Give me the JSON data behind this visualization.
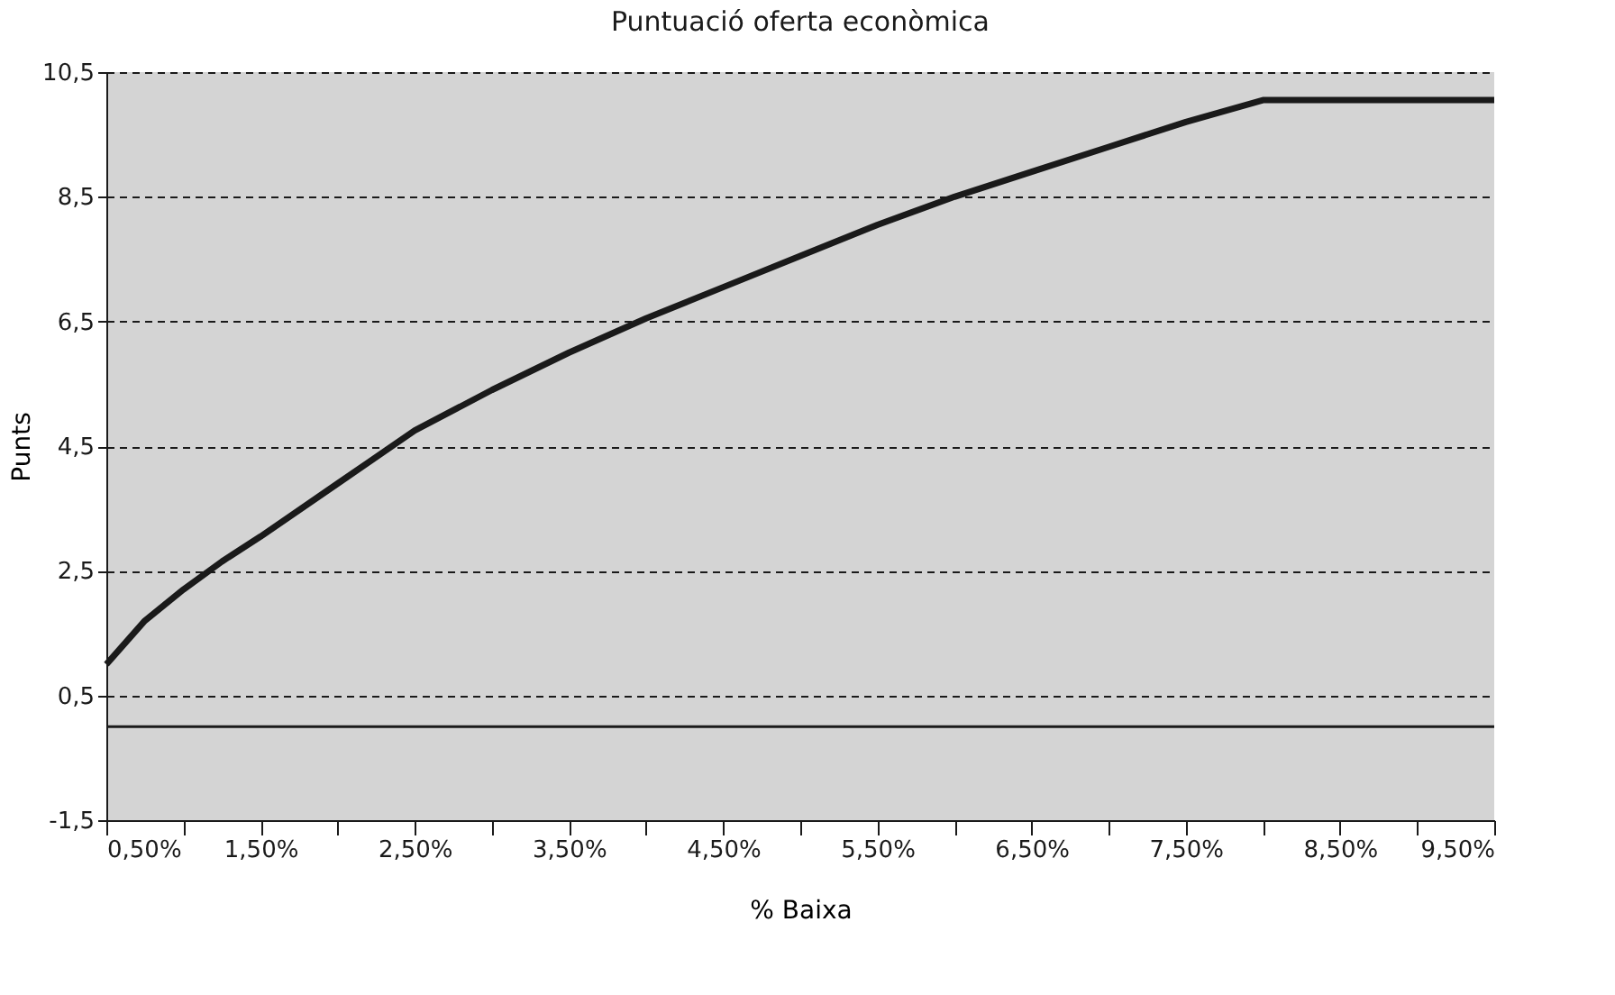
{
  "chart_data": {
    "type": "line",
    "title": "Puntuació oferta econòmica",
    "xlabel": "% Baixa",
    "ylabel": "Punts",
    "x": [
      0.5,
      0.75,
      1.0,
      1.25,
      1.5,
      2.0,
      2.5,
      3.0,
      3.5,
      4.0,
      4.5,
      5.0,
      5.5,
      6.0,
      6.5,
      7.0,
      7.5,
      8.0,
      8.5,
      9.0,
      9.5
    ],
    "series": [
      {
        "color": "#1a1a1a",
        "values": [
          1.0,
          1.7,
          2.2,
          2.65,
          3.05,
          3.9,
          4.75,
          5.4,
          6.0,
          6.55,
          7.05,
          7.55,
          8.05,
          8.5,
          8.9,
          9.3,
          9.7,
          10.05,
          10.05,
          10.05,
          10.05
        ]
      }
    ],
    "xlim": [
      0.5,
      9.5
    ],
    "ylim": [
      -1.5,
      10.5
    ],
    "xticks": [
      {
        "value": 0.5,
        "label": "0,50%"
      },
      {
        "value": 1.0,
        "label": null
      },
      {
        "value": 1.5,
        "label": "1,50%"
      },
      {
        "value": 2.0,
        "label": null
      },
      {
        "value": 2.5,
        "label": "2,50%"
      },
      {
        "value": 3.0,
        "label": null
      },
      {
        "value": 3.5,
        "label": "3,50%"
      },
      {
        "value": 4.0,
        "label": null
      },
      {
        "value": 4.5,
        "label": "4,50%"
      },
      {
        "value": 5.0,
        "label": null
      },
      {
        "value": 5.5,
        "label": "5,50%"
      },
      {
        "value": 6.0,
        "label": null
      },
      {
        "value": 6.5,
        "label": "6,50%"
      },
      {
        "value": 7.0,
        "label": null
      },
      {
        "value": 7.5,
        "label": "7,50%"
      },
      {
        "value": 8.0,
        "label": null
      },
      {
        "value": 8.5,
        "label": "8,50%"
      },
      {
        "value": 9.0,
        "label": null
      },
      {
        "value": 9.5,
        "label": "9,50%"
      }
    ],
    "yticks": [
      {
        "value": -1.5,
        "label": "-1,5"
      },
      {
        "value": 0.5,
        "label": "0,5"
      },
      {
        "value": 2.5,
        "label": "2,5"
      },
      {
        "value": 4.5,
        "label": "4,5"
      },
      {
        "value": 6.5,
        "label": "6,5"
      },
      {
        "value": 8.5,
        "label": "8,5"
      },
      {
        "value": 10.5,
        "label": "10,5"
      }
    ],
    "ref_lines": [
      {
        "axis": "y",
        "value": 0,
        "color": "#1a1a1a",
        "line_style": "solid"
      }
    ],
    "grid": "y",
    "marker": "none",
    "line_style": "solid"
  }
}
